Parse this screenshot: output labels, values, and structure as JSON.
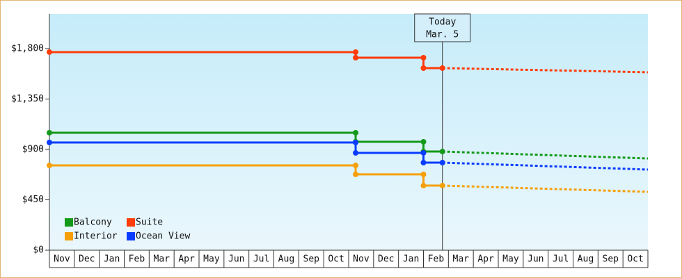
{
  "chart_data": {
    "type": "step-line",
    "categories": [
      "Nov",
      "Dec",
      "Jan",
      "Feb",
      "Mar",
      "Apr",
      "May",
      "Jun",
      "Jul",
      "Aug",
      "Sep",
      "Oct",
      "Nov",
      "Dec",
      "Jan",
      "Feb",
      "Mar",
      "Apr",
      "May",
      "Jun",
      "Jul",
      "Aug",
      "Sep",
      "Oct"
    ],
    "xlim": [
      0,
      24
    ],
    "ylim": [
      0,
      2110
    ],
    "yticks": [
      {
        "value": 0,
        "label": "$0"
      },
      {
        "value": 450,
        "label": "$450"
      },
      {
        "value": 900,
        "label": "$900"
      },
      {
        "value": 1350,
        "label": "$1,350"
      },
      {
        "value": 1800,
        "label": "$1,800"
      }
    ],
    "annotation": {
      "x": 15.76,
      "text": [
        "Today",
        "Mar. 5"
      ]
    },
    "series": [
      {
        "name": "Balcony",
        "color": "#14991a",
        "x": [
          0,
          12.28,
          12.28,
          15,
          15,
          15.76
        ],
        "values": [
          1049,
          1049,
          968,
          968,
          881,
          881
        ],
        "forecast_x": [
          15.76,
          24
        ],
        "forecast_values": [
          881,
          819
        ]
      },
      {
        "name": "Suite",
        "color": "#ff3c0a",
        "x": [
          0,
          12.28,
          12.28,
          15,
          15,
          15.76
        ],
        "values": [
          1769,
          1769,
          1719,
          1719,
          1626,
          1626
        ],
        "forecast_x": [
          15.76,
          24
        ],
        "forecast_values": [
          1626,
          1589
        ]
      },
      {
        "name": "Interior",
        "color": "#f5a00a",
        "x": [
          0,
          12.28,
          12.28,
          15,
          15,
          15.76
        ],
        "values": [
          757,
          757,
          677,
          677,
          577,
          577
        ],
        "forecast_x": [
          15.76,
          24
        ],
        "forecast_values": [
          577,
          521
        ]
      },
      {
        "name": "Ocean View",
        "color": "#0a3cff",
        "x": [
          0,
          12.28,
          12.28,
          15,
          15,
          15.76
        ],
        "values": [
          962,
          962,
          869,
          869,
          782,
          782
        ],
        "forecast_x": [
          15.76,
          24
        ],
        "forecast_values": [
          782,
          720
        ]
      }
    ]
  }
}
